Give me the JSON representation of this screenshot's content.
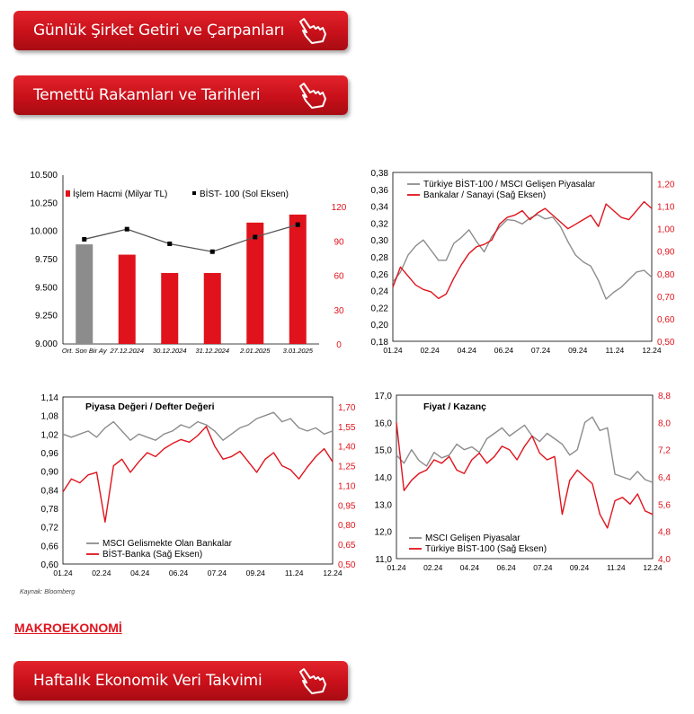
{
  "buttons": [
    {
      "label": "Günlük Şirket Getiri ve Çarpanları"
    },
    {
      "label": "Temettü Rakamları ve Tarihleri"
    },
    {
      "label": "Haftalık Ekonomik Veri Takvimi"
    }
  ],
  "colors": {
    "accent": "#e0131c",
    "gray": "#8c8c8c",
    "black": "#000000"
  },
  "source_note": "Kaynak: Bloomberg",
  "section_title": "MAKROEKONOMİ",
  "chart_data": [
    {
      "type": "bar",
      "categories": [
        "Ort. Son Bir Ay",
        "27.12.2024",
        "30.12.2024",
        "31.12.2024",
        "2.01.2025",
        "3.01.2025"
      ],
      "series": [
        {
          "name": "İşlem Hacmi (Milyar TL)",
          "axis": "right",
          "values": [
            87,
            78,
            62,
            62,
            106,
            113
          ]
        },
        {
          "name": "BİST- 100 (Sol Eksen)",
          "axis": "left",
          "values": [
            9930,
            10020,
            9890,
            9820,
            9950,
            10060
          ]
        }
      ],
      "ylim_left": [
        9000,
        10500
      ],
      "yticks_left": [
        "10.500",
        "10.250",
        "10.000",
        "9.750",
        "9.500",
        "9.250",
        "9.000"
      ],
      "ylim_right": [
        0,
        120
      ],
      "yticks_right": [
        "120",
        "90",
        "60",
        "30",
        "0"
      ],
      "legend": "top-right",
      "grid": false
    },
    {
      "type": "line",
      "x_ticks": [
        "01.24",
        "02.24",
        "04.24",
        "06.24",
        "07.24",
        "09.24",
        "11.24",
        "12.24"
      ],
      "series": [
        {
          "name": "Türkiye BİST-100 / MSCI Gelişen Piyasalar",
          "axis": "left",
          "values": [
            0.25,
            0.262,
            0.282,
            0.293,
            0.3,
            0.288,
            0.276,
            0.276,
            0.296,
            0.303,
            0.312,
            0.298,
            0.286,
            0.304,
            0.315,
            0.324,
            0.323,
            0.319,
            0.326,
            0.33,
            0.325,
            0.327,
            0.316,
            0.298,
            0.282,
            0.274,
            0.269,
            0.252,
            0.23,
            0.238,
            0.244,
            0.253,
            0.262,
            0.264,
            0.256
          ]
        },
        {
          "name": "Bankalar / Sanayi (Sağ Eksen)",
          "axis": "right",
          "values": [
            0.74,
            0.83,
            0.79,
            0.75,
            0.73,
            0.72,
            0.69,
            0.71,
            0.78,
            0.84,
            0.89,
            0.92,
            0.93,
            0.95,
            1.02,
            1.05,
            1.06,
            1.08,
            1.04,
            1.07,
            1.09,
            1.06,
            1.03,
            1.0,
            1.02,
            1.04,
            1.06,
            1.01,
            1.11,
            1.08,
            1.05,
            1.04,
            1.08,
            1.12,
            1.09
          ]
        }
      ],
      "ylim_left": [
        0.18,
        0.38
      ],
      "yticks_left": [
        "0,38",
        "0,36",
        "0,34",
        "0,32",
        "0,30",
        "0,28",
        "0,26",
        "0,24",
        "0,22",
        "0,20",
        "0,18"
      ],
      "ylim_right": [
        0.5,
        1.25
      ],
      "yticks_right": [
        "1,20",
        "1,10",
        "1,00",
        "0,90",
        "0,80",
        "0,70",
        "0,60",
        "0,50"
      ],
      "legend": "top-left",
      "grid": false
    },
    {
      "type": "line",
      "title": "Piyasa Değeri / Defter Değeri",
      "x_ticks": [
        "01.24",
        "02.24",
        "04.24",
        "06.24",
        "07.24",
        "09.24",
        "11.24",
        "12.24"
      ],
      "series": [
        {
          "name": "MSCI Gelismekte Olan Bankalar",
          "axis": "left",
          "values": [
            1.02,
            1.01,
            1.02,
            1.03,
            1.01,
            1.04,
            1.06,
            1.03,
            1.0,
            1.02,
            1.01,
            1.0,
            1.02,
            1.03,
            1.05,
            1.04,
            1.06,
            1.05,
            1.03,
            1.0,
            1.02,
            1.04,
            1.05,
            1.07,
            1.08,
            1.09,
            1.06,
            1.07,
            1.04,
            1.03,
            1.04,
            1.02,
            1.03
          ]
        },
        {
          "name": "BİST-Banka (Sağ Eksen)",
          "axis": "right",
          "values": [
            1.05,
            1.15,
            1.12,
            1.18,
            1.2,
            0.82,
            1.25,
            1.3,
            1.2,
            1.28,
            1.35,
            1.32,
            1.38,
            1.42,
            1.45,
            1.43,
            1.48,
            1.55,
            1.4,
            1.3,
            1.32,
            1.36,
            1.28,
            1.2,
            1.3,
            1.35,
            1.25,
            1.22,
            1.15,
            1.24,
            1.32,
            1.38,
            1.28
          ]
        }
      ],
      "ylim_left": [
        0.6,
        1.14
      ],
      "yticks_left": [
        "1,14",
        "1,08",
        "1,02",
        "0,96",
        "0,90",
        "0,84",
        "0,78",
        "0,72",
        "0,66",
        "0,60"
      ],
      "ylim_right": [
        0.5,
        1.775
      ],
      "yticks_right": [
        "1,70",
        "1,55",
        "1,40",
        "1,25",
        "1,10",
        "0,95",
        "0,80",
        "0,65",
        "0,50"
      ],
      "legend": "bottom-left",
      "grid": false
    },
    {
      "type": "line",
      "title": "Fiyat / Kazanç",
      "x_ticks": [
        "01.24",
        "02.24",
        "04.24",
        "06.24",
        "07.24",
        "09.24",
        "11.24",
        "12.24"
      ],
      "series": [
        {
          "name": "MSCI Gelişen Piyasalar",
          "axis": "left",
          "values": [
            14.8,
            14.5,
            15.0,
            14.6,
            14.4,
            14.9,
            14.7,
            14.8,
            15.2,
            15.0,
            15.1,
            14.9,
            15.4,
            15.6,
            15.8,
            15.5,
            15.7,
            15.9,
            15.5,
            15.3,
            15.6,
            15.4,
            15.2,
            14.8,
            15.0,
            16.0,
            16.2,
            15.7,
            15.8,
            14.1,
            14.0,
            13.9,
            14.2,
            13.9,
            13.8
          ]
        },
        {
          "name": "Türkiye BİST-100 (Sağ Eksen)",
          "axis": "right",
          "values": [
            8.0,
            6.0,
            6.3,
            6.5,
            6.6,
            6.9,
            6.8,
            7.0,
            6.6,
            6.5,
            6.9,
            7.1,
            6.8,
            7.0,
            7.3,
            7.2,
            6.9,
            7.3,
            7.6,
            7.1,
            6.9,
            7.0,
            5.3,
            6.3,
            6.6,
            6.4,
            6.2,
            5.3,
            4.9,
            5.7,
            5.8,
            5.6,
            5.9,
            5.4,
            5.3
          ]
        }
      ],
      "ylim_left": [
        11.0,
        17.0
      ],
      "yticks_left": [
        "17,0",
        "16,0",
        "15,0",
        "14,0",
        "13,0",
        "12,0",
        "11,0"
      ],
      "ylim_right": [
        4.0,
        8.8
      ],
      "yticks_right": [
        "8,8",
        "8,0",
        "7,2",
        "6,4",
        "5,6",
        "4,8",
        "4,0"
      ],
      "legend": "bottom-left",
      "grid": false
    }
  ]
}
